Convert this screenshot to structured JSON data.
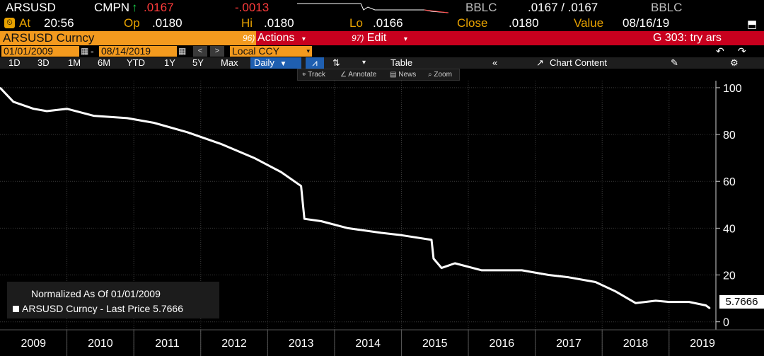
{
  "quote": {
    "ticker": "ARSUSD",
    "source_label": "CMPN",
    "last_price": ".0167",
    "change": "-.0013",
    "right_source": "BBLC",
    "bid_ask": ".0167 / .0167",
    "right_source_2": "BBLC",
    "at_label": "At",
    "time": "20:56",
    "open_label": "Op",
    "open": ".0180",
    "high_label": "Hi",
    "high": ".0180",
    "low_label": "Lo",
    "low": ".0166",
    "close_label": "Close",
    "close": ".0180",
    "value_label": "Value",
    "value_date": "08/16/19"
  },
  "title_bar": {
    "security": "ARSUSD Curncy",
    "actions_num": "96)",
    "actions_label": "Actions",
    "edit_num": "97)",
    "edit_label": "Edit",
    "function_text": "G 303: try ars"
  },
  "date_row": {
    "start_date": "01/01/2009",
    "end_date": "08/14/2019",
    "currency": "Local CCY"
  },
  "range_row": {
    "ranges": [
      "1D",
      "3D",
      "1M",
      "6M",
      "YTD",
      "1Y",
      "5Y",
      "Max"
    ],
    "frequency": "Daily",
    "table_label": "Table",
    "chart_content_label": "Chart Content"
  },
  "tools": {
    "track": "Track",
    "annotate": "Annotate",
    "news": "News",
    "zoom": "Zoom"
  },
  "legend": {
    "note": "Normalized As Of 01/01/2009",
    "series": "ARSUSD Curncy - Last Price 5.7666"
  },
  "last_price_tag": "5.7666",
  "colors": {
    "background": "#000000",
    "line": "#ffffff",
    "amber": "#e8a200",
    "title_orange": "#f39a1e",
    "title_red": "#c8001e",
    "selected_blue": "#1f5fb0"
  },
  "chart_data": {
    "type": "line",
    "series": [
      {
        "name": "ARSUSD Curncy - Last Price",
        "points": [
          [
            2009.0,
            100
          ],
          [
            2009.2,
            94
          ],
          [
            2009.5,
            91
          ],
          [
            2009.7,
            90
          ],
          [
            2010.0,
            91
          ],
          [
            2010.4,
            88
          ],
          [
            2010.9,
            87
          ],
          [
            2011.3,
            85
          ],
          [
            2011.8,
            81
          ],
          [
            2012.3,
            76
          ],
          [
            2012.8,
            70
          ],
          [
            2013.2,
            64
          ],
          [
            2013.5,
            58
          ],
          [
            2013.55,
            44
          ],
          [
            2013.8,
            43
          ],
          [
            2014.2,
            40
          ],
          [
            2014.7,
            38
          ],
          [
            2015.0,
            37
          ],
          [
            2015.45,
            35
          ],
          [
            2015.48,
            27
          ],
          [
            2015.6,
            23
          ],
          [
            2015.8,
            25
          ],
          [
            2016.2,
            22
          ],
          [
            2016.8,
            22
          ],
          [
            2017.2,
            20
          ],
          [
            2017.5,
            19
          ],
          [
            2017.9,
            17
          ],
          [
            2018.2,
            13
          ],
          [
            2018.5,
            8
          ],
          [
            2018.8,
            9
          ],
          [
            2019.0,
            8.5
          ],
          [
            2019.3,
            8.5
          ],
          [
            2019.55,
            7
          ],
          [
            2019.61,
            5.77
          ]
        ]
      }
    ],
    "xlabel": "",
    "ylabel": "",
    "x_tick_labels": [
      "2009",
      "2010",
      "2011",
      "2012",
      "2013",
      "2014",
      "2015",
      "2016",
      "2017",
      "2018",
      "2019"
    ],
    "y_ticks": [
      0,
      20,
      40,
      60,
      80,
      100
    ],
    "xlim": [
      2009.0,
      2019.7
    ],
    "ylim": [
      -1,
      103
    ],
    "grid": true,
    "legend_position": "bottom-left"
  }
}
